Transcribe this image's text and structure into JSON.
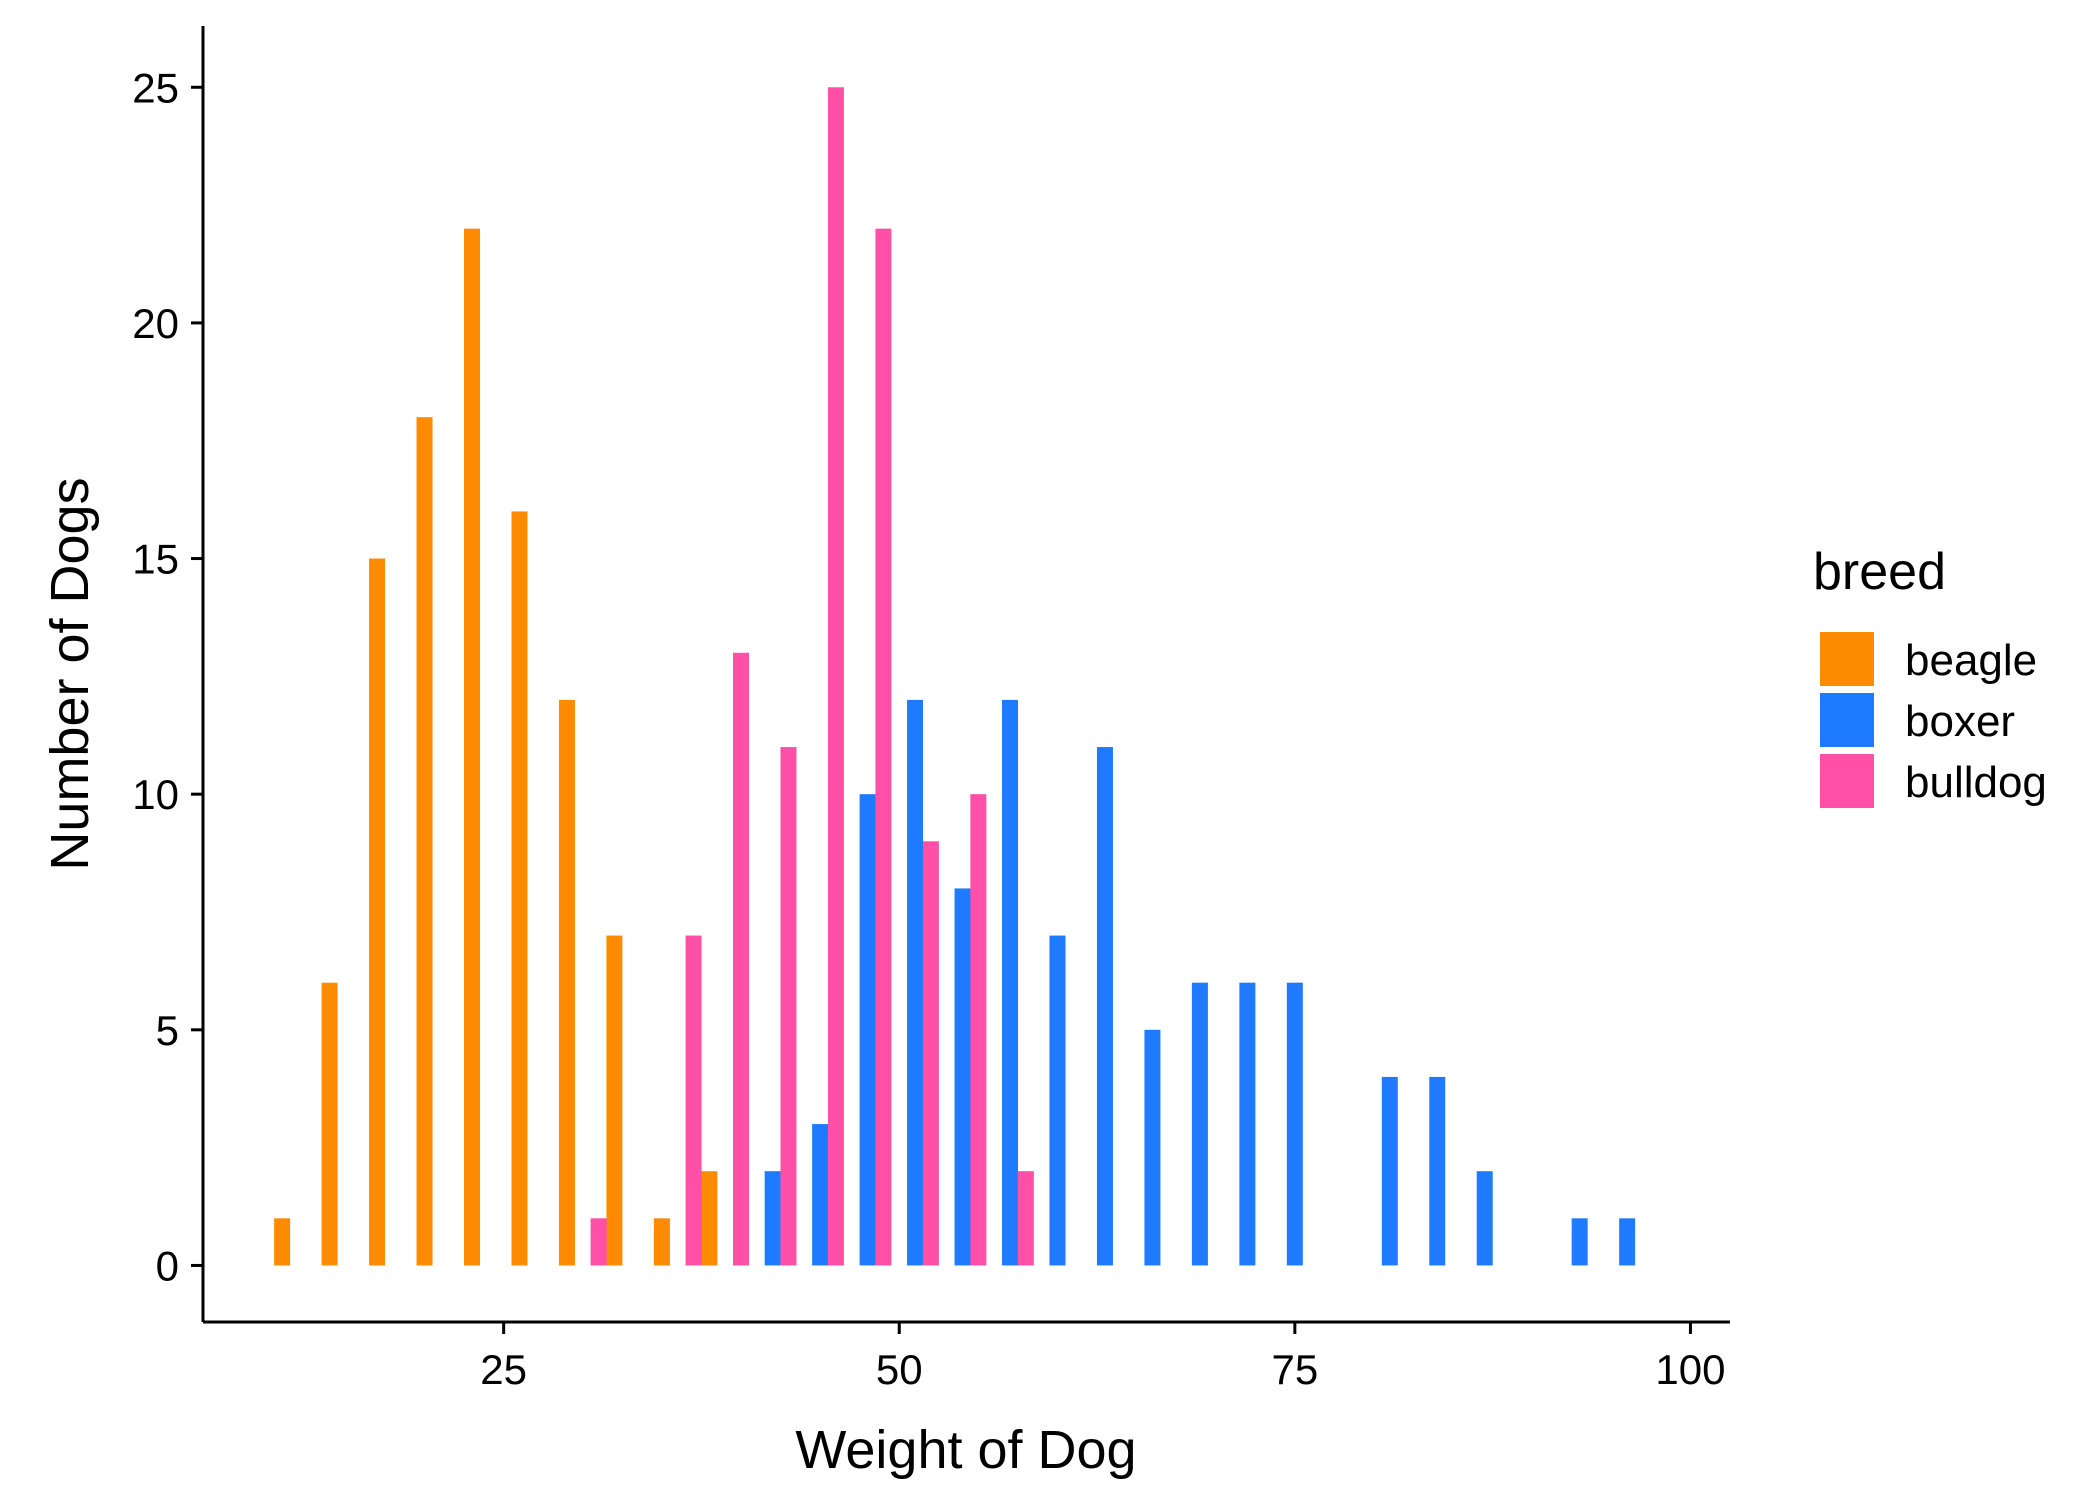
{
  "chart_data": {
    "type": "bar",
    "title": "",
    "xlabel": "Weight of Dog",
    "ylabel": "Number of Dogs",
    "xlim": [
      6,
      102.5
    ],
    "ylim": [
      -1.2,
      26.3
    ],
    "xticks": [
      "25",
      "50",
      "75",
      "100"
    ],
    "yticks": [
      "0",
      "5",
      "10",
      "15",
      "20",
      "25"
    ],
    "grid": false,
    "legend": {
      "title": "breed",
      "position": "right"
    },
    "series": [
      {
        "name": "beagle",
        "color": "#FF8C00",
        "points": [
          {
            "x": 11,
            "y": 1
          },
          {
            "x": 14,
            "y": 6
          },
          {
            "x": 17,
            "y": 15
          },
          {
            "x": 20,
            "y": 18
          },
          {
            "x": 23,
            "y": 22
          },
          {
            "x": 26,
            "y": 16
          },
          {
            "x": 29,
            "y": 12
          },
          {
            "x": 32,
            "y": 7
          },
          {
            "x": 35,
            "y": 1
          },
          {
            "x": 38,
            "y": 2
          }
        ]
      },
      {
        "name": "boxer",
        "color": "#1E7BFF",
        "points": [
          {
            "x": 42,
            "y": 2
          },
          {
            "x": 45,
            "y": 3
          },
          {
            "x": 48,
            "y": 10
          },
          {
            "x": 51,
            "y": 12
          },
          {
            "x": 54,
            "y": 8
          },
          {
            "x": 57,
            "y": 12
          },
          {
            "x": 60,
            "y": 7
          },
          {
            "x": 63,
            "y": 11
          },
          {
            "x": 66,
            "y": 5
          },
          {
            "x": 69,
            "y": 6
          },
          {
            "x": 72,
            "y": 6
          },
          {
            "x": 75,
            "y": 6
          },
          {
            "x": 81,
            "y": 4
          },
          {
            "x": 84,
            "y": 4
          },
          {
            "x": 87,
            "y": 2
          },
          {
            "x": 93,
            "y": 1
          },
          {
            "x": 96,
            "y": 1
          }
        ]
      },
      {
        "name": "bulldog",
        "color": "#FF4FA7",
        "points": [
          {
            "x": 31,
            "y": 1
          },
          {
            "x": 37,
            "y": 7
          },
          {
            "x": 40,
            "y": 13
          },
          {
            "x": 43,
            "y": 11
          },
          {
            "x": 46,
            "y": 25
          },
          {
            "x": 49,
            "y": 22
          },
          {
            "x": 52,
            "y": 9
          },
          {
            "x": 55,
            "y": 10
          },
          {
            "x": 58,
            "y": 2
          }
        ]
      }
    ]
  }
}
